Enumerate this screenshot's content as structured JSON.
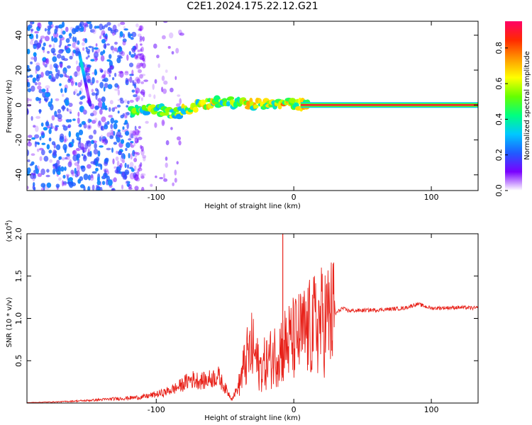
{
  "title": "C2E1.2024.175.22.12.G21",
  "chart_data": [
    {
      "type": "heatmap",
      "title": "C2E1.2024.175.22.12.G21",
      "xlabel": "Height of straight line (km)",
      "ylabel": "Frequency (Hz)",
      "xlim": [
        -194,
        134
      ],
      "ylim": [
        -49,
        48
      ],
      "x_ticks": [
        -100,
        0,
        100
      ],
      "y_ticks": [
        40,
        20,
        0,
        -20,
        -40
      ],
      "colorbar": {
        "label": "Normalized spectral amplitude",
        "range": [
          0,
          0.95
        ],
        "ticks": [
          0.0,
          0.2,
          0.4,
          0.6,
          0.8
        ],
        "colors": [
          "#ffffff",
          "#7a00ff",
          "#1f5cff",
          "#00c8ff",
          "#00ff80",
          "#66ff00",
          "#ffff00",
          "#ff9900",
          "#ff2a00",
          "#ff0066"
        ]
      },
      "features": [
        {
          "name": "scatter-noise-region",
          "x_range": [
            -194,
            -100
          ],
          "y_range": [
            -49,
            48
          ]
        },
        {
          "name": "diagonal-streak",
          "x_start": -156,
          "y_start": 30,
          "x_end": -148,
          "y_end": 0
        },
        {
          "name": "meandering-band",
          "x_range": [
            -118,
            10
          ],
          "y_center": [
            -3,
            -2,
            -5,
            0,
            2,
            1,
            0,
            1,
            0
          ]
        },
        {
          "name": "steady-tone",
          "x_range": [
            5,
            134
          ],
          "y": 0,
          "amplitude": 0.95
        }
      ]
    },
    {
      "type": "line",
      "xlabel": "Height of straight line (km)",
      "ylabel": "SNR (10 * v/v)",
      "y_exponent_label": "(x10",
      "y_exponent": "4",
      "y_exponent_close": ")",
      "xlim": [
        -194,
        134
      ],
      "ylim": [
        0,
        20000
      ],
      "x_ticks": [
        -100,
        0,
        100
      ],
      "y_ticks": [
        0.5,
        1.0,
        1.5,
        2.0
      ],
      "color": "#e8221a",
      "series": [
        {
          "x": [
            -194,
            -170,
            -150,
            -130,
            -110,
            -95,
            -85,
            -75,
            -65,
            -55,
            -50,
            -45,
            -40,
            -35,
            -30,
            -25,
            -20,
            -15,
            -10,
            -5,
            0,
            10,
            20,
            30,
            35,
            40,
            60,
            80,
            90,
            100,
            120,
            134
          ],
          "values": [
            50,
            150,
            300,
            500,
            700,
            1200,
            1800,
            2800,
            2600,
            3200,
            1800,
            500,
            2000,
            5000,
            6500,
            4000,
            4800,
            5500,
            6500,
            7000,
            7500,
            8500,
            9600,
            10500,
            11200,
            10900,
            11000,
            11200,
            11700,
            11200,
            11300,
            11200
          ]
        }
      ],
      "annotations": [
        {
          "name": "spike",
          "x": -8,
          "value": 20000
        }
      ]
    }
  ]
}
